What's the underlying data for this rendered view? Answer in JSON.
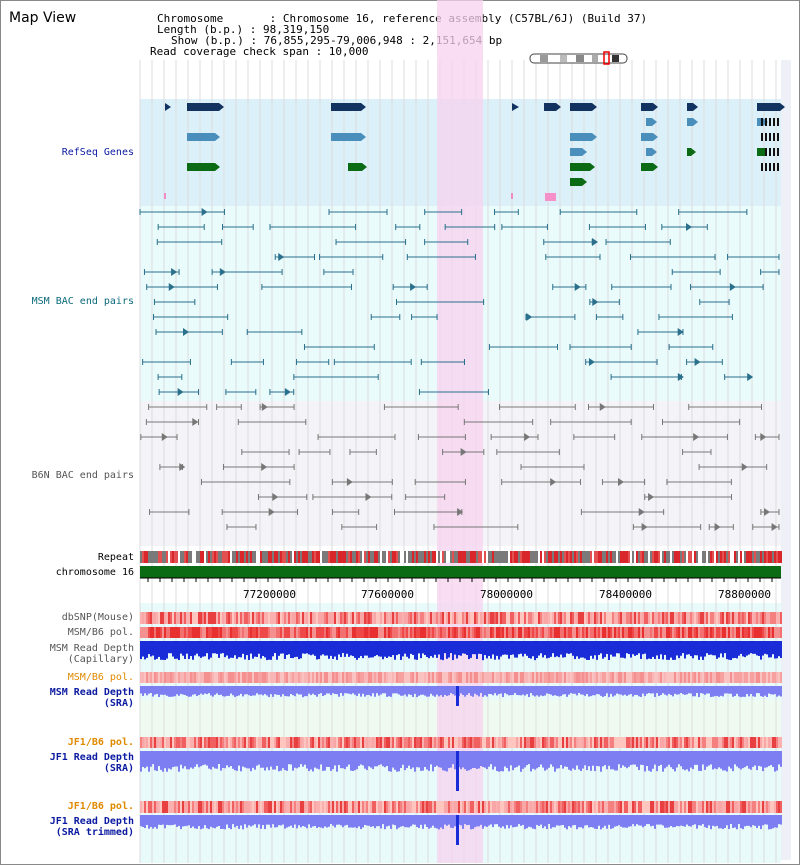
{
  "panel": {
    "title": "Map View"
  },
  "info": {
    "chromosome": "Chromosome       : Chromosome 16, reference assembly (C57BL/6J) (Build 37)",
    "length": "Length (b.p.) : 98,319,150",
    "show": "Show (b.p.) : 76,855,295-79,006,948 : 2,151,654 bp",
    "span": "Read coverage check span : 10,000"
  },
  "tracks": {
    "refseq": "RefSeq Genes",
    "msm_bac": "MSM BAC end pairs",
    "b6n_bac": "B6N BAC end pairs",
    "repeat": "Repeat",
    "chromosome": "chromosome 16",
    "dbsnp": "dbSNP(Mouse)",
    "msm_b6_pol_1": "MSM/B6 pol.",
    "msm_depth_cap": "MSM Read Depth\n(Capillary)",
    "msm_b6_pol_2": "MSM/B6 pol.",
    "msm_depth_sra": "MSM Read Depth\n(SRA)",
    "jf1_b6_pol_1": "JF1/B6 pol.",
    "jf1_depth_sra": "JF1 Read Depth\n(SRA)",
    "jf1_b6_pol_2": "JF1/B6 pol.",
    "jf1_depth_trim": "JF1 Read Depth\n(SRA trimmed)"
  },
  "axis": {
    "ticks": [
      "77200000",
      "77600000",
      "78000000",
      "78400000",
      "78800000"
    ]
  },
  "colors": {
    "refseq_bg": "#dcf0fa",
    "msm_bg": "#e9fbfb",
    "b6n_bg": "#f4f4f8",
    "highlight": "#f7d3ef",
    "gene_dark": "#12335f",
    "gene_mid": "#4a8fbc",
    "gene_green": "#0b6a14",
    "bac_msm": "#2a6f8c",
    "bac_b6n": "#777777",
    "label_blue": "#0b1aa0",
    "label_teal": "#0a6a7a",
    "label_orange": "#e08a00",
    "depth_dark": "#1a2cd8",
    "depth_light": "#7c7ef2"
  }
}
